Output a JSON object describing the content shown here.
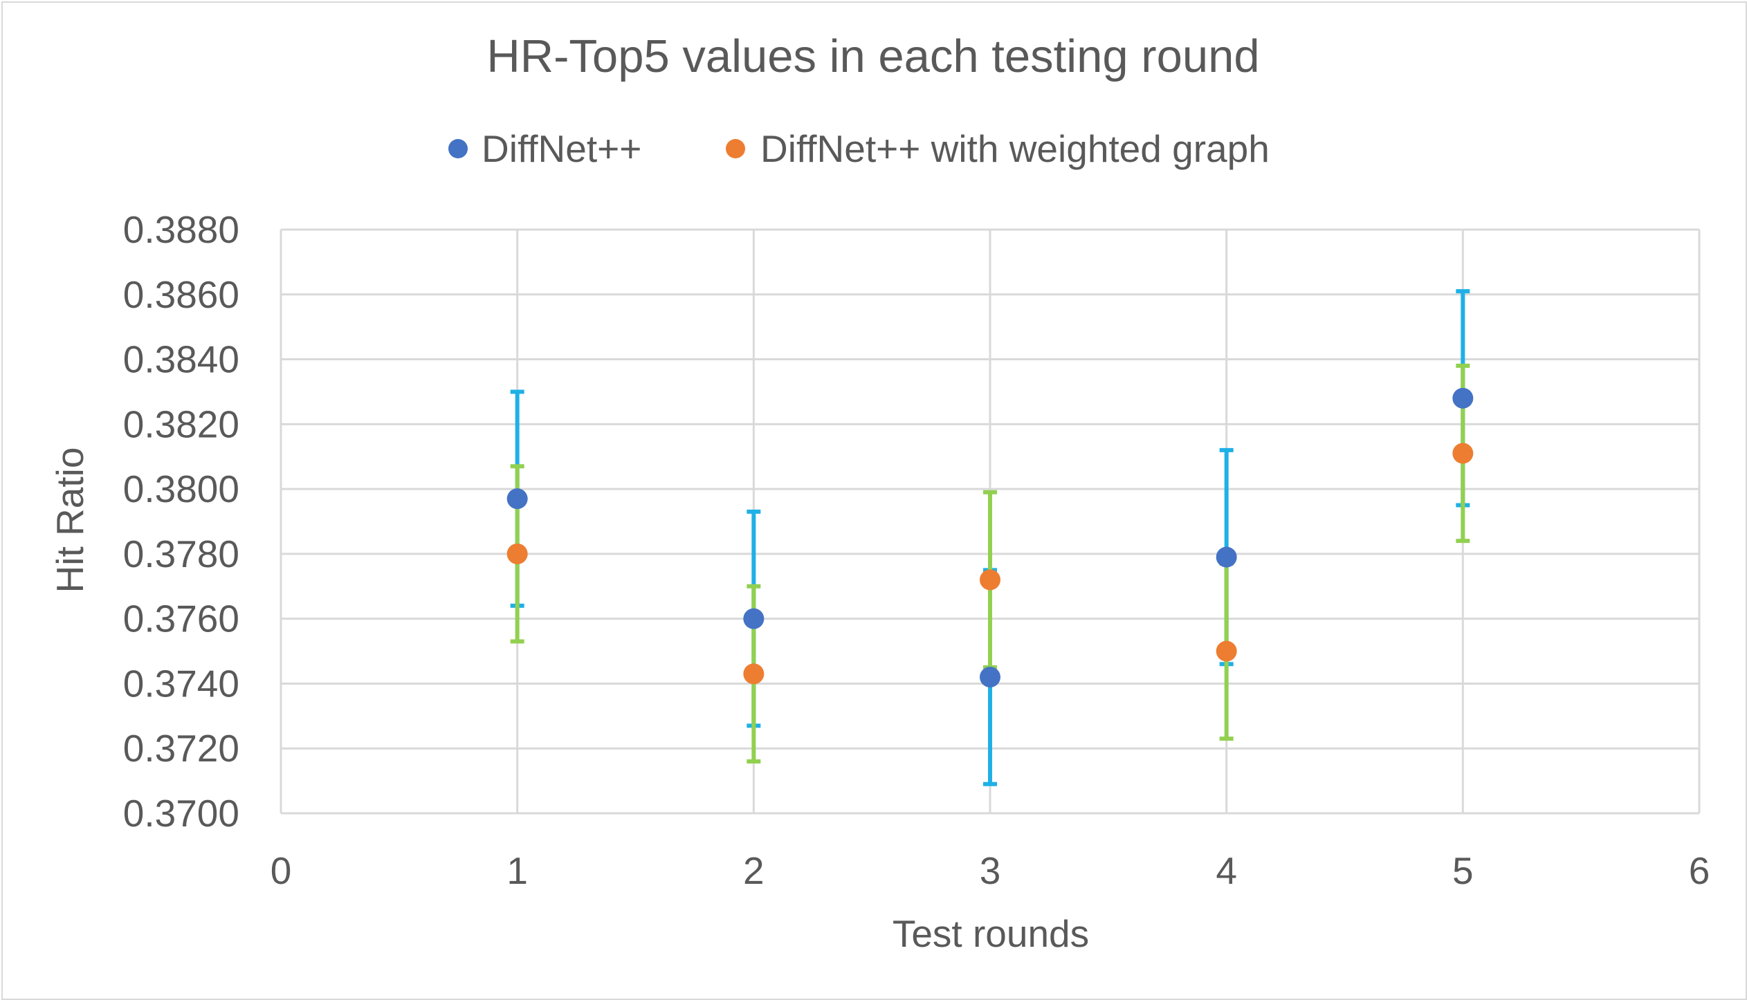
{
  "chart_data": {
    "type": "scatter",
    "title": "HR-Top5 values in each testing round",
    "xlabel": "Test rounds",
    "ylabel": "Hit Ratio",
    "xlim": [
      0,
      6
    ],
    "ylim": [
      0.37,
      0.388
    ],
    "x_ticks": [
      "0",
      "1",
      "2",
      "3",
      "4",
      "5",
      "6"
    ],
    "y_ticks": [
      "0.3700",
      "0.3720",
      "0.3740",
      "0.3760",
      "0.3780",
      "0.3800",
      "0.3820",
      "0.3840",
      "0.3860",
      "0.3880"
    ],
    "grid": true,
    "legend_position": "top",
    "series": [
      {
        "name": "DiffNet++",
        "color": "#4472c4",
        "error_bar_color": "#1fb0e6",
        "points": [
          {
            "x": 1,
            "y": 0.3797,
            "low": 0.3764,
            "high": 0.383
          },
          {
            "x": 2,
            "y": 0.376,
            "low": 0.3727,
            "high": 0.3793
          },
          {
            "x": 3,
            "y": 0.3742,
            "low": 0.3709,
            "high": 0.3775
          },
          {
            "x": 4,
            "y": 0.3779,
            "low": 0.3746,
            "high": 0.3812
          },
          {
            "x": 5,
            "y": 0.3828,
            "low": 0.3795,
            "high": 0.3861
          }
        ]
      },
      {
        "name": "DiffNet++ with weighted graph",
        "color": "#ed7d31",
        "error_bar_color": "#92d050",
        "points": [
          {
            "x": 1,
            "y": 0.378,
            "low": 0.3753,
            "high": 0.3807
          },
          {
            "x": 2,
            "y": 0.3743,
            "low": 0.3716,
            "high": 0.377
          },
          {
            "x": 3,
            "y": 0.3772,
            "low": 0.3745,
            "high": 0.3799
          },
          {
            "x": 4,
            "y": 0.375,
            "low": 0.3723,
            "high": 0.3777
          },
          {
            "x": 5,
            "y": 0.3811,
            "low": 0.3784,
            "high": 0.3838
          }
        ]
      }
    ]
  }
}
